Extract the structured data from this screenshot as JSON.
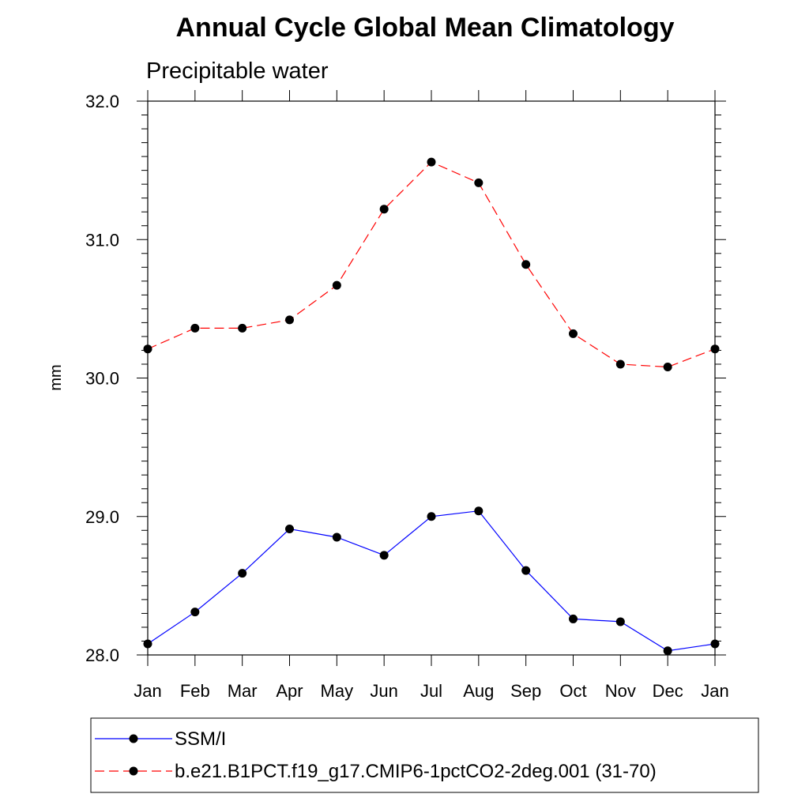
{
  "chart_data": {
    "type": "line",
    "title": "Annual Cycle Global Mean Climatology",
    "subtitle": "Precipitable water",
    "xlabel": "",
    "ylabel": "mm",
    "categories": [
      "Jan",
      "Feb",
      "Mar",
      "Apr",
      "May",
      "Jun",
      "Jul",
      "Aug",
      "Sep",
      "Oct",
      "Nov",
      "Dec",
      "Jan"
    ],
    "ylim": [
      28.0,
      32.0
    ],
    "yticks": [
      28.0,
      29.0,
      30.0,
      31.0,
      32.0
    ],
    "ytick_labels": [
      "28.0",
      "29.0",
      "30.0",
      "31.0",
      "32.0"
    ],
    "y_minor_step": 0.1,
    "grid": false,
    "legend_position": "bottom",
    "series": [
      {
        "name": "SSM/I",
        "color": "#0000ff",
        "dash": "solid",
        "marker": "circle",
        "values": [
          28.08,
          28.31,
          28.59,
          28.91,
          28.85,
          28.72,
          29.0,
          29.04,
          28.61,
          28.26,
          28.24,
          28.03,
          28.08
        ]
      },
      {
        "name": "b.e21.B1PCT.f19_g17.CMIP6-1pctCO2-2deg.001 (31-70)",
        "color": "#ff0000",
        "dash": "dashed",
        "marker": "circle",
        "values": [
          30.21,
          30.36,
          30.36,
          30.42,
          30.67,
          31.22,
          31.56,
          31.41,
          30.82,
          30.32,
          30.1,
          30.08,
          30.21
        ]
      }
    ]
  }
}
